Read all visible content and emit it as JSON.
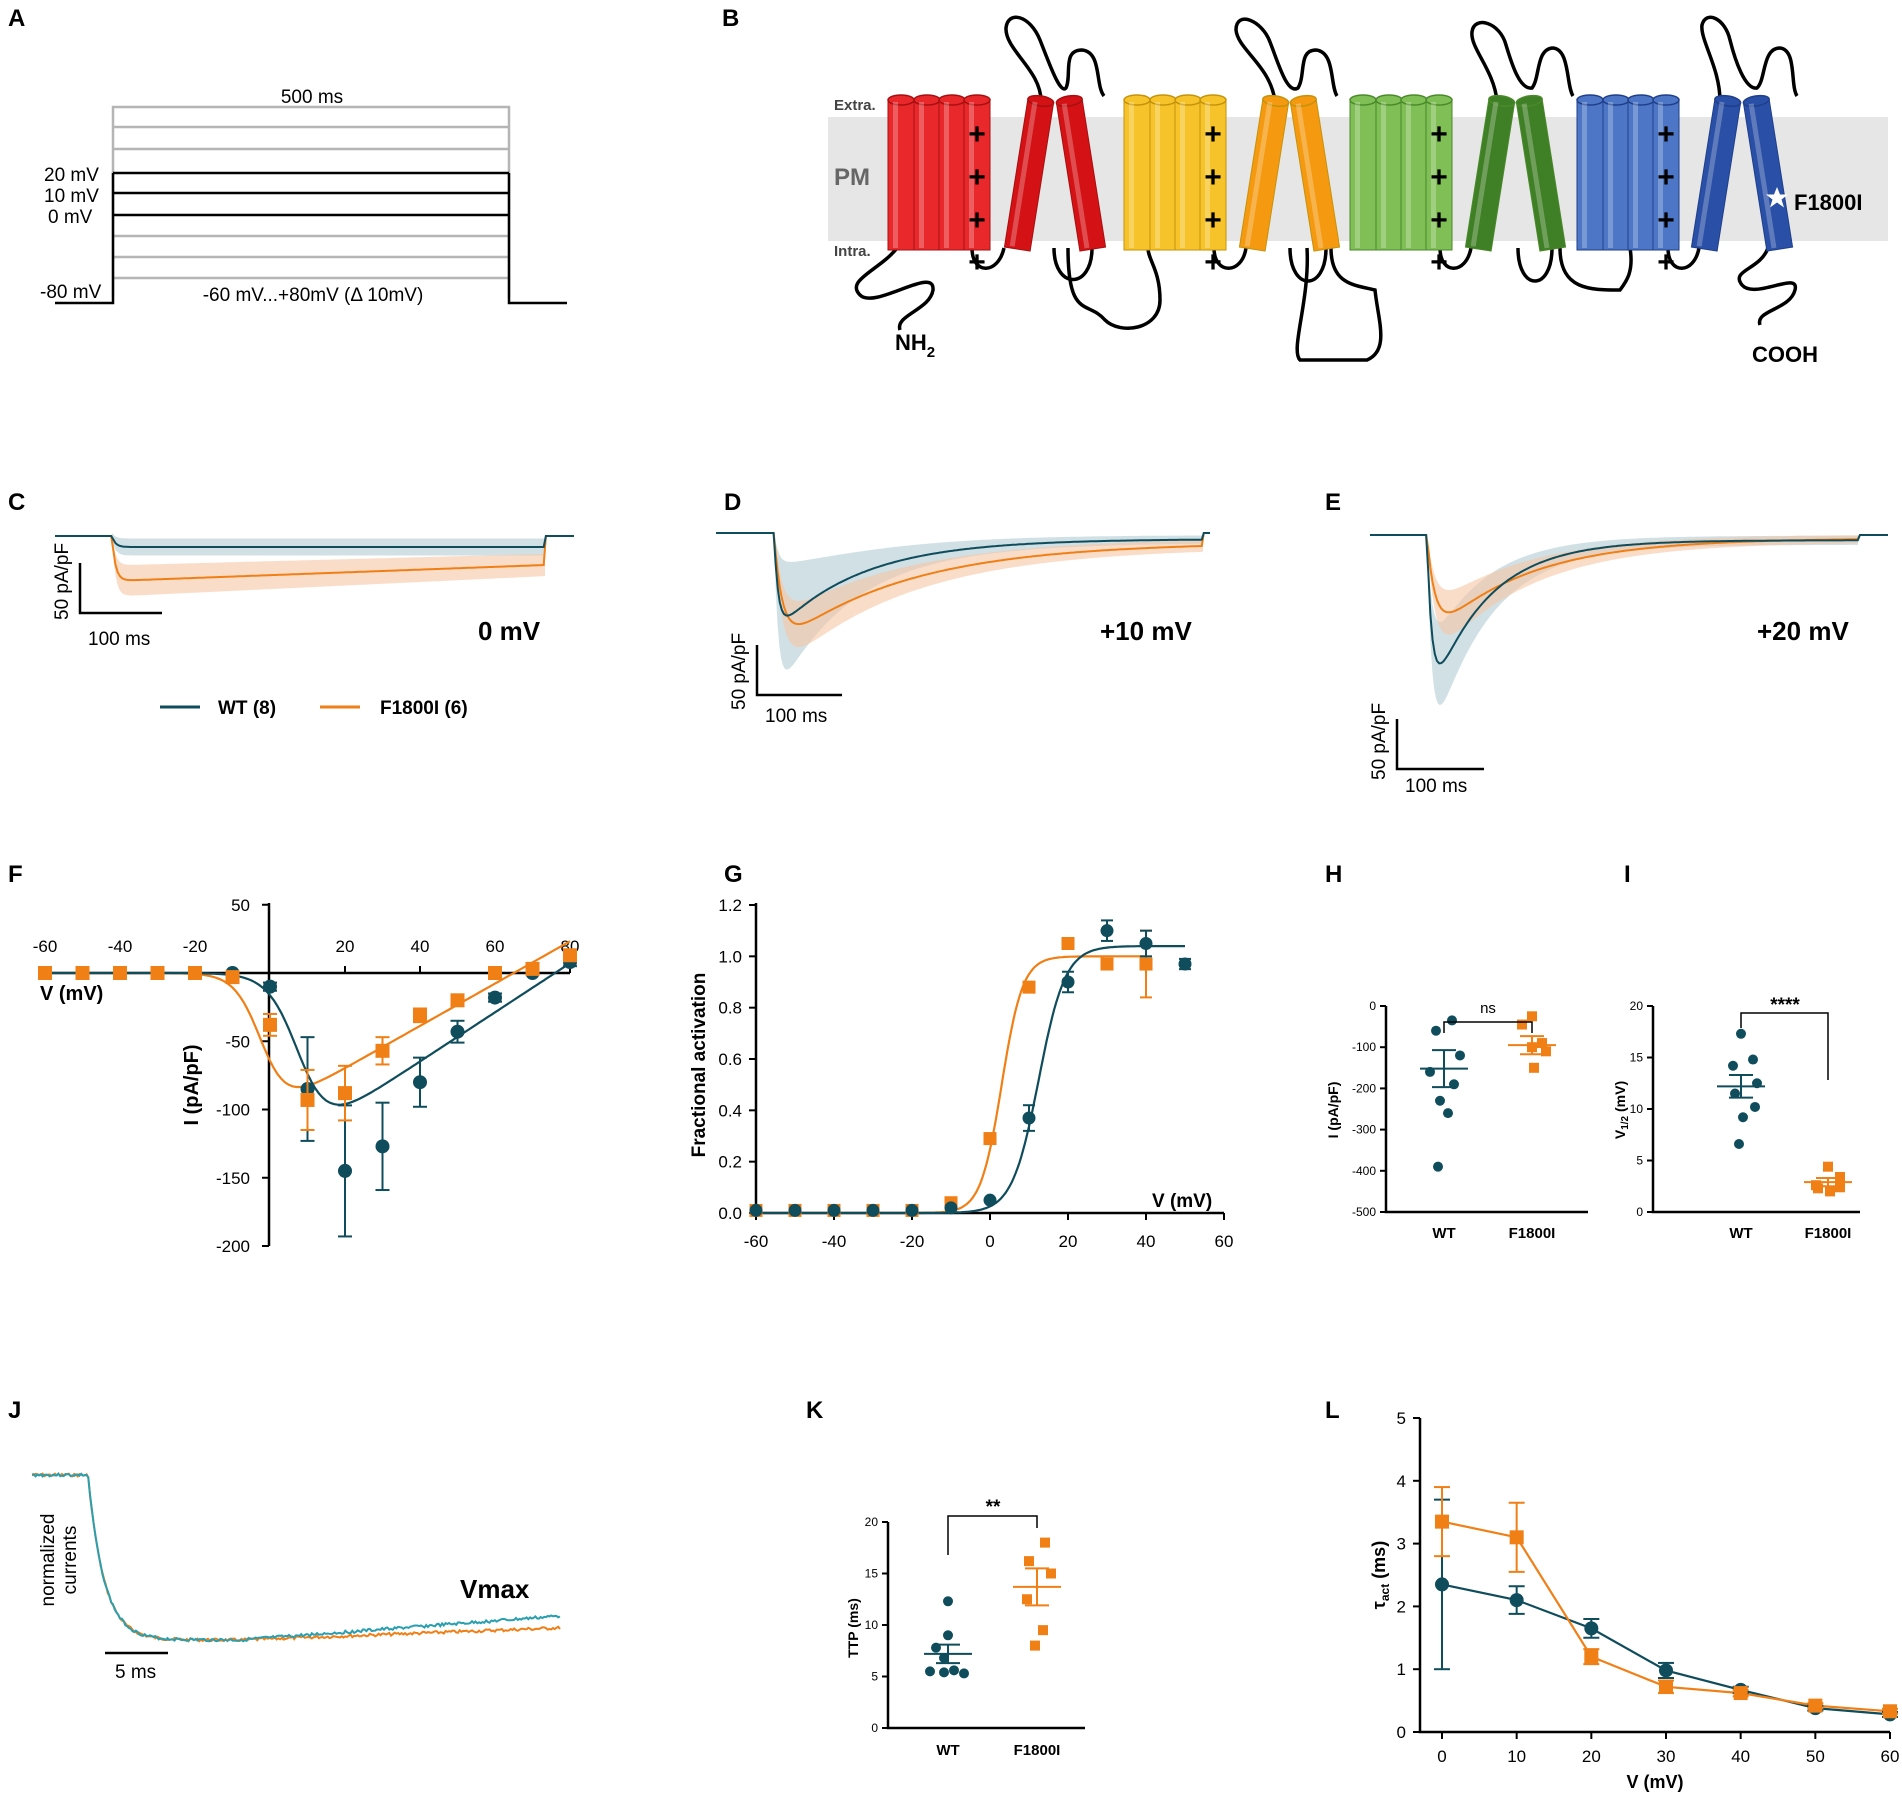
{
  "colors": {
    "wt": "#0f4c5c",
    "mut": "#f07f16",
    "wt_band": "#a9c6cf",
    "mut_band": "#f6c7a4",
    "membrane": "#e6e6e6",
    "j_wt": "#2a9fb0"
  },
  "panels": {
    "A": {
      "label": "A",
      "duration": "500 ms",
      "v20": "20 mV",
      "v10": "10 mV",
      "v0": "0 mV",
      "hold": "-80 mV",
      "range": "-60 mV...+80mV (Δ 10mV)"
    },
    "B": {
      "label": "B",
      "extra": "Extra.",
      "pm": "PM",
      "intra": "Intra.",
      "nh2": "NH",
      "nh2_sub": "2",
      "cooh": "COOH",
      "mutation": "F1800I",
      "star_icon": "star-icon"
    },
    "C": {
      "label": "C",
      "scale_y": "50 pA/pF",
      "scale_x": "100 ms",
      "voltage": "0 mV"
    },
    "D": {
      "label": "D",
      "scale_y": "50 pA/pF",
      "scale_x": "100 ms",
      "voltage": "+10 mV"
    },
    "E": {
      "label": "E",
      "scale_y": "50 pA/pF",
      "scale_x": "100 ms",
      "voltage": "+20 mV"
    },
    "J": {
      "label": "J",
      "ylabel_1": "normalized",
      "ylabel_2": "currents",
      "scale_x": "5 ms",
      "title": "Vmax"
    }
  },
  "legend": {
    "wt": "WT (8)",
    "mut": "F1800I (6)"
  },
  "chart_data": [
    {
      "id": "F",
      "label": "F",
      "type": "scatter",
      "xlabel": "V (mV)",
      "ylabel": "I (pA/pF)",
      "xlim": [
        -60,
        80
      ],
      "ylim": [
        -200,
        50
      ],
      "xticks": [
        "-60",
        "-40",
        "-20",
        "20",
        "40",
        "60",
        "80"
      ],
      "yticks": [
        "50",
        "-50",
        "-100",
        "-150",
        "-200"
      ],
      "x": [
        -60,
        -50,
        -40,
        -30,
        -20,
        -10,
        0,
        10,
        20,
        30,
        40,
        50,
        60,
        70,
        80
      ],
      "series": [
        {
          "name": "WT (8)",
          "values": [
            0,
            0,
            0,
            0,
            0,
            0,
            -10,
            -85,
            -145,
            -127,
            -80,
            -43,
            -18,
            0,
            8
          ],
          "sem": [
            0,
            0,
            0,
            0,
            0,
            0,
            3,
            38,
            48,
            32,
            18,
            8,
            3,
            2,
            3
          ]
        },
        {
          "name": "F1800I (6)",
          "values": [
            0,
            0,
            0,
            0,
            0,
            -3,
            -38,
            -93,
            -88,
            -57,
            -31,
            -20,
            0,
            3,
            13
          ],
          "sem": [
            0,
            0,
            0,
            0,
            0,
            2,
            8,
            22,
            20,
            10,
            5,
            3,
            2,
            2,
            3
          ]
        }
      ]
    },
    {
      "id": "G",
      "label": "G",
      "type": "scatter",
      "xlabel": "V (mV)",
      "ylabel": "Fractional activation",
      "xlim": [
        -60,
        60
      ],
      "ylim": [
        0,
        1.2
      ],
      "xticks": [
        "-60",
        "-40",
        "-20",
        "0",
        "20",
        "40",
        "60"
      ],
      "yticks": [
        "0.0",
        "0.2",
        "0.4",
        "0.6",
        "0.8",
        "1.0",
        "1.2"
      ],
      "series": [
        {
          "name": "WT (8)",
          "x": [
            -60,
            -50,
            -40,
            -30,
            -20,
            -10,
            0,
            10,
            20,
            30,
            40,
            50
          ],
          "values": [
            0.01,
            0.01,
            0.01,
            0.01,
            0.01,
            0.02,
            0.05,
            0.37,
            0.9,
            1.1,
            1.05,
            0.97
          ],
          "sem": [
            0,
            0,
            0,
            0,
            0,
            0,
            0,
            0.05,
            0.04,
            0.04,
            0.05,
            0.02
          ]
        },
        {
          "name": "F1800I (6)",
          "x": [
            -60,
            -50,
            -40,
            -30,
            -20,
            -10,
            0,
            10,
            20,
            30,
            40
          ],
          "values": [
            0.01,
            0.01,
            0.01,
            0.01,
            0.01,
            0.04,
            0.29,
            0.88,
            1.05,
            0.97,
            0.97
          ],
          "sem": [
            0,
            0,
            0,
            0,
            0,
            0,
            0,
            0,
            0,
            0,
            0.13
          ]
        }
      ]
    },
    {
      "id": "H",
      "label": "H",
      "type": "scatter",
      "ylabel": "I (pA/pF)",
      "ylim": [
        -500,
        0
      ],
      "yticks": [
        "0",
        "-100",
        "-200",
        "-300",
        "-400",
        "-500"
      ],
      "categories": [
        "WT",
        "F1800I"
      ],
      "significance": "ns",
      "series": [
        {
          "name": "WT",
          "points": [
            -35,
            -60,
            -120,
            -160,
            -190,
            -230,
            -260,
            -390
          ],
          "mean": -152,
          "sem": 45
        },
        {
          "name": "F1800I",
          "points": [
            -25,
            -45,
            -90,
            -110,
            -100,
            -150
          ],
          "mean": -95,
          "sem": 22
        }
      ]
    },
    {
      "id": "I",
      "label": "I",
      "type": "scatter",
      "ylabel": "V1/2 (mV)",
      "ylim": [
        0,
        20
      ],
      "yticks": [
        "0",
        "5",
        "10",
        "15",
        "20"
      ],
      "categories": [
        "WT",
        "F1800I"
      ],
      "significance": "****",
      "series": [
        {
          "name": "WT",
          "points": [
            17.3,
            14.8,
            14.2,
            12.5,
            11.5,
            10.2,
            9.2,
            6.6
          ],
          "mean": 12.2,
          "sem": 1.1
        },
        {
          "name": "F1800I",
          "points": [
            4.4,
            3.4,
            2.6,
            2.4,
            2.3,
            2.0
          ],
          "mean": 2.9,
          "sem": 0.4
        }
      ]
    },
    {
      "id": "K",
      "label": "K",
      "type": "scatter",
      "ylabel": "TTP (ms)",
      "ylim": [
        0,
        20
      ],
      "yticks": [
        "0",
        "5",
        "10",
        "15",
        "20"
      ],
      "categories": [
        "WT",
        "F1800I"
      ],
      "significance": "**",
      "series": [
        {
          "name": "WT",
          "points": [
            12.3,
            9.0,
            7.8,
            6.8,
            5.5,
            5.3,
            5.4,
            5.6
          ],
          "mean": 7.2,
          "sem": 0.9
        },
        {
          "name": "F1800I",
          "points": [
            18.0,
            16.2,
            15.0,
            12.5,
            9.5,
            8.0
          ],
          "mean": 13.7,
          "sem": 1.8
        }
      ]
    },
    {
      "id": "L",
      "label": "L",
      "type": "line",
      "xlabel": "V (mV)",
      "ylabel": "τact (ms)",
      "xlim": [
        0,
        60
      ],
      "ylim": [
        0,
        5
      ],
      "xticks": [
        "0",
        "10",
        "20",
        "30",
        "40",
        "50",
        "60"
      ],
      "yticks": [
        "0",
        "1",
        "2",
        "3",
        "4",
        "5"
      ],
      "x": [
        0,
        10,
        20,
        30,
        40,
        50,
        60
      ],
      "series": [
        {
          "name": "WT (8)",
          "values": [
            2.35,
            2.1,
            1.65,
            0.98,
            0.67,
            0.38,
            0.28
          ],
          "sem": [
            1.35,
            0.22,
            0.15,
            0.12,
            0.05,
            0.04,
            0.04
          ]
        },
        {
          "name": "F1800I (6)",
          "values": [
            3.35,
            3.1,
            1.2,
            0.72,
            0.62,
            0.42,
            0.33
          ],
          "sem": [
            0.55,
            0.55,
            0.12,
            0.1,
            0.05,
            0.04,
            0.04
          ]
        }
      ]
    }
  ]
}
